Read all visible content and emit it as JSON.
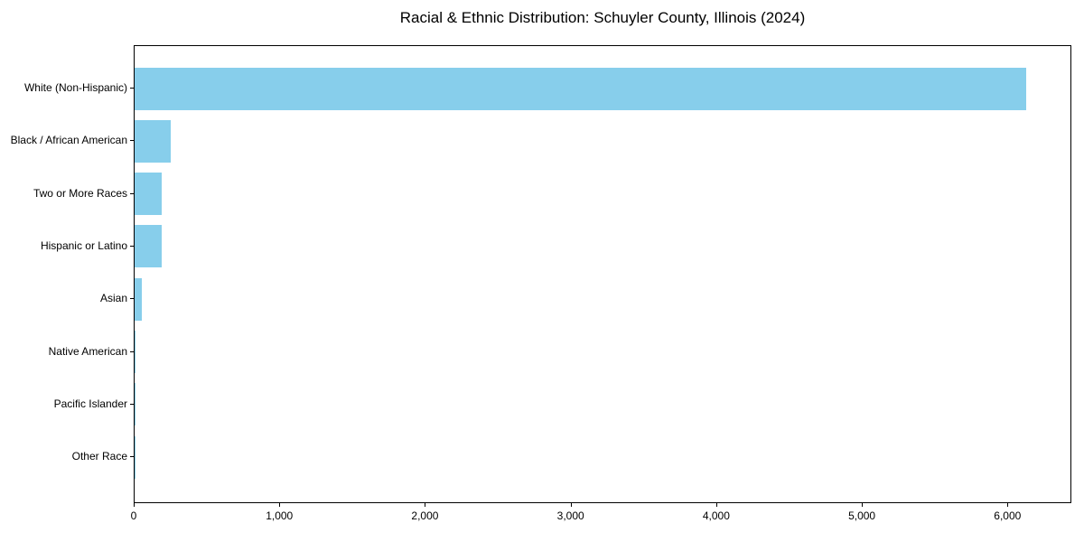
{
  "title": "Racial & Ethnic Distribution: Schuyler County, Illinois (2024)",
  "chart_data": {
    "type": "bar",
    "orientation": "horizontal",
    "title": "Racial & Ethnic Distribution: Schuyler County, Illinois (2024)",
    "categories": [
      "White (Non-Hispanic)",
      "Black / African American",
      "Two or More Races",
      "Hispanic or Latino",
      "Asian",
      "Native American",
      "Pacific Islander",
      "Other Race"
    ],
    "values": [
      6120,
      250,
      185,
      183,
      50,
      5,
      3,
      2
    ],
    "xlabel": "",
    "ylabel": "",
    "xlim": [
      0,
      6426
    ],
    "x_ticks": [
      0,
      1000,
      2000,
      3000,
      4000,
      5000,
      6000
    ],
    "x_tick_labels": [
      "0",
      "1,000",
      "2,000",
      "3,000",
      "4,000",
      "5,000",
      "6,000"
    ],
    "bar_color": "#87CEEB",
    "axis_color": "#000000",
    "background_color": "#ffffff",
    "grid": false,
    "legend": null,
    "sort_order": "descending"
  }
}
